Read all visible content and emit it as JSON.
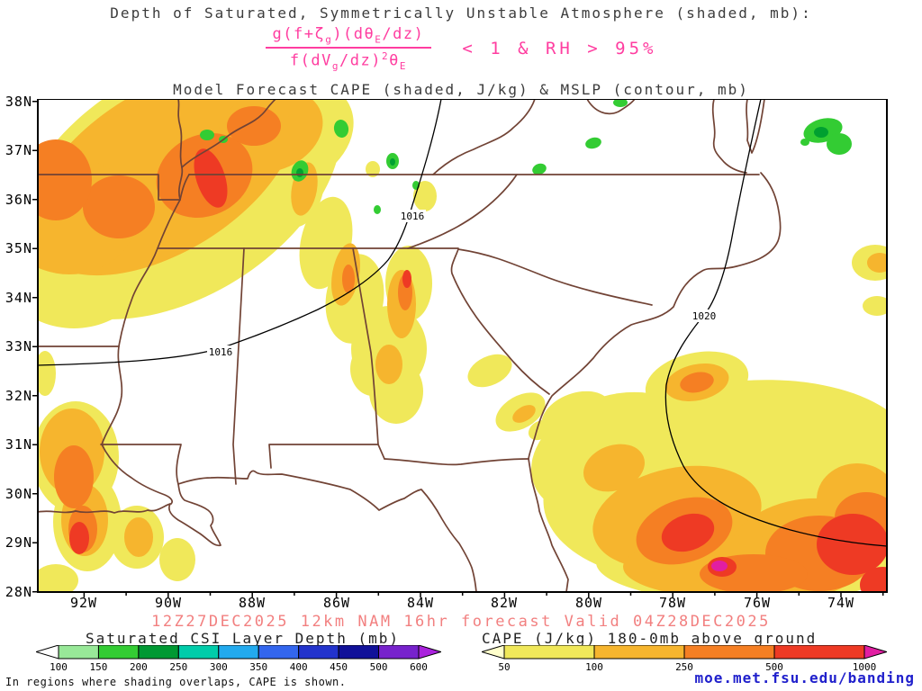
{
  "title": {
    "line1": "Depth of Saturated, Symmetrically Unstable Atmosphere (shaded, mb):",
    "formula": {
      "num": [
        "g(f+ζ",
        "g",
        ")(dθ",
        "E",
        "/dz)"
      ],
      "den": [
        "f(dV",
        "g",
        "/dz)",
        "2",
        "θ",
        "E"
      ],
      "cond": "< 1 & RH > 95%"
    },
    "line2": "Model Forecast CAPE (shaded, J/kg) & MSLP (contour, mb)"
  },
  "map": {
    "y_ticks": [
      "38N",
      "37N",
      "36N",
      "35N",
      "34N",
      "33N",
      "32N",
      "31N",
      "30N",
      "29N",
      "28N"
    ],
    "x_ticks": [
      "92W",
      "90W",
      "88W",
      "86W",
      "84W",
      "82W",
      "80W",
      "78W",
      "76W",
      "74W"
    ],
    "contour_labels": [
      "1016",
      "1016",
      "1020"
    ]
  },
  "footer": {
    "forecast_line": "12Z27DEC2025 12km NAM 16hr forecast Valid 04Z28DEC2025",
    "legend_csi": {
      "title": "Saturated CSI Layer Depth (mb)",
      "ticks": [
        "100",
        "150",
        "200",
        "250",
        "300",
        "350",
        "400",
        "450",
        "500",
        "600"
      ],
      "colors": [
        "#ffffff",
        "#98e898",
        "#33cc33",
        "#009933",
        "#00ccaa",
        "#22aaee",
        "#3366ee",
        "#2233cc",
        "#111199",
        "#7722cc",
        "#aa22dd"
      ]
    },
    "legend_cape": {
      "title": "CAPE (J/kg) 180-0mb above ground",
      "ticks": [
        "50",
        "100",
        "250",
        "500",
        "1000"
      ],
      "colors": [
        "#ffffcc",
        "#f0e85a",
        "#f6b52e",
        "#f57f23",
        "#ee3a24",
        "#e11ea2"
      ]
    },
    "note": "In regions where shading overlaps, CAPE is shown.",
    "credit": "moe.met.fsu.edu/banding"
  },
  "colors": {
    "state_border": "#714335",
    "contour": "#000000",
    "formula_pink": "#ff3da0",
    "forecast_text": "#f28080",
    "credit_blue": "#2020cc",
    "cape_yellow": "#f0e85a",
    "cape_gold": "#f6b52e",
    "cape_orange": "#f57f23",
    "cape_red": "#ee3a24",
    "cape_magenta": "#e11ea2",
    "csi_green": "#33cc33"
  },
  "chart_data": {
    "type": "heatmap",
    "title": "Model Forecast CAPE (shaded, J/kg) & MSLP (contour, mb)",
    "region": "Southeastern United States",
    "lon_range": [
      "93W",
      "73W"
    ],
    "lat_range": [
      "28N",
      "38N"
    ],
    "x_ticks": [
      "92W",
      "90W",
      "88W",
      "86W",
      "84W",
      "82W",
      "80W",
      "78W",
      "76W",
      "74W"
    ],
    "y_ticks": [
      "38N",
      "37N",
      "36N",
      "35N",
      "34N",
      "33N",
      "32N",
      "31N",
      "30N",
      "29N",
      "28N"
    ],
    "mslp_contours_mb": [
      1016,
      1020
    ],
    "cape_scale": {
      "units": "J/kg",
      "levels": [
        50,
        100,
        250,
        500,
        1000
      ],
      "colors": [
        "#ffffcc",
        "#f0e85a",
        "#f6b52e",
        "#f57f23",
        "#ee3a24",
        "#e11ea2"
      ]
    },
    "csi_depth_scale": {
      "units": "mb",
      "levels": [
        100,
        150,
        200,
        250,
        300,
        350,
        400,
        450,
        500,
        600
      ],
      "colors": [
        "#ffffff",
        "#98e898",
        "#33cc33",
        "#009933",
        "#00ccaa",
        "#22aaee",
        "#3366ee",
        "#2233cc",
        "#111199",
        "#7722cc",
        "#aa22dd"
      ]
    },
    "cape_regions": [
      {
        "location": "northeast Arkansas / southeast Missouri into west Tennessee (~36N-37N, 89W-93W)",
        "peak": "500-1000 J/kg, red core near 36.4N 89.0W"
      },
      {
        "location": "band from west Tennessee through central Mississippi into south Alabama (~30N-37N, 86W-88W)",
        "peak": "250-500 J/kg"
      },
      {
        "location": "Louisiana (~28N-31N, 91W-93W)",
        "peak": "500-1000 J/kg near 29N 92W"
      },
      {
        "location": "central Georgia spots (~32N-33N, 81W-83W)",
        "peak": "100-250 J/kg"
      },
      {
        "location": "large Atlantic area off Georgia/Florida (~28N-32N, 73W-81W)",
        "peak": ">1000 J/kg (magenta) near 28.5N 76.8W and along 74W"
      }
    ],
    "csi_regions": [
      {
        "location": "scattered green patches over Tennessee, Kentucky, Virginia, North Carolina and offshore Atlantic near 37N 74.5W",
        "depth": "100-200 mb"
      }
    ],
    "grid": false,
    "legend_position": "bottom"
  }
}
